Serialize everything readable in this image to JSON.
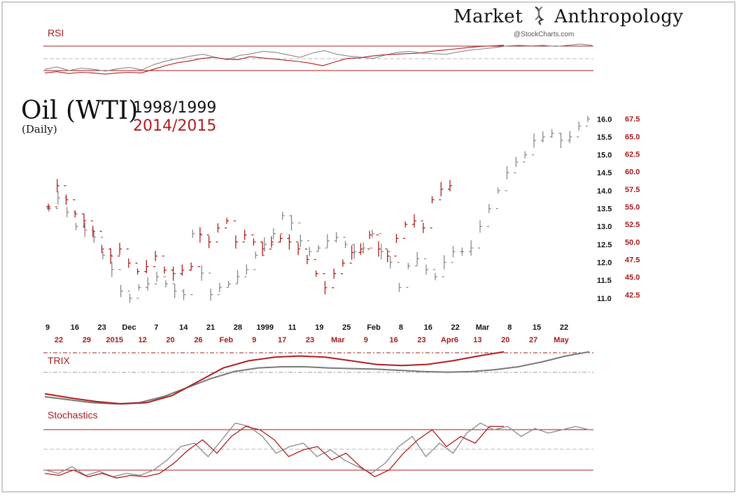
{
  "brand": {
    "name_part1": "Market",
    "name_part2": "Anthropology",
    "credit": "@StockCharts.com"
  },
  "title": {
    "main": "Oil (WTI)",
    "sub": "(Daily)"
  },
  "legend": {
    "series_a": "1998/1999",
    "series_b": "2014/2015",
    "color_a": "#888888",
    "color_b": "#b01c1c"
  },
  "panels": {
    "rsi": "RSI",
    "trix": "TRIX",
    "stochastics": "Stochastics"
  },
  "chart_data": [
    {
      "type": "candlestick",
      "title": "Oil (WTI) daily - 1998/1999 vs 2014/2015",
      "ylabel_left_series": "1998/1999",
      "y_axis_1998": {
        "ticks": [
          "11.0",
          "11.5",
          "12.0",
          "12.5",
          "13.0",
          "13.5",
          "14.0",
          "14.5",
          "15.0",
          "15.5",
          "16.0"
        ],
        "range": [
          10.9,
          16.2
        ]
      },
      "y_axis_2014": {
        "ticks": [
          "42.5",
          "45.0",
          "47.5",
          "50.0",
          "52.5",
          "55.0",
          "57.5",
          "60.0",
          "62.5",
          "65.0",
          "67.5"
        ],
        "range": [
          41.5,
          68.5
        ]
      },
      "x_labels_1998": [
        "9",
        "16",
        "23",
        "Dec",
        "7",
        "14",
        "21",
        "28",
        "1999",
        "11",
        "19",
        "25",
        "Feb",
        "8",
        "16",
        "22",
        "Mar",
        "8",
        "15",
        "22"
      ],
      "x_labels_2014": [
        "22",
        "29",
        "2015",
        "12",
        "20",
        "26",
        "Feb",
        "9",
        "17",
        "23",
        "Mar",
        "9",
        "16",
        "23",
        "Apr6",
        "13",
        "20",
        "27",
        "May"
      ],
      "series": [
        {
          "name": "1998/1999",
          "color": "#888888",
          "close": [
            13.5,
            13.8,
            13.4,
            13.0,
            12.9,
            12.7,
            12.2,
            11.8,
            11.2,
            11.0,
            11.3,
            11.4,
            11.6,
            11.4,
            11.2,
            11.1,
            12.8,
            11.7,
            11.1,
            11.3,
            11.4,
            11.6,
            11.8,
            12.2,
            12.5,
            12.8,
            13.3,
            13.1,
            12.6,
            12.3,
            12.4,
            12.6,
            12.7,
            12.5,
            12.3,
            12.4,
            12.8,
            12.3,
            12.0,
            11.3,
            11.9,
            12.1,
            11.8,
            11.6,
            12.0,
            12.3,
            12.3,
            12.4,
            13.0,
            13.5,
            14.0,
            14.5,
            14.8,
            15.0,
            15.4,
            15.5,
            15.6,
            15.4,
            15.5,
            15.8,
            16.0
          ]
        },
        {
          "name": "2014/2015",
          "color": "#b01c1c",
          "close": [
            55.0,
            58.0,
            56.0,
            54.0,
            53.0,
            51.5,
            49.0,
            48.0,
            49.0,
            47.0,
            45.8,
            46.5,
            48.0,
            46.0,
            45.5,
            46.0,
            46.5,
            51.0,
            50.0,
            52.0,
            53.0,
            50.0,
            51.0,
            50.0,
            49.0,
            50.0,
            50.5,
            50.0,
            49.0,
            47.5,
            45.5,
            43.5,
            45.5,
            47.0,
            48.5,
            49.0,
            51.0,
            49.0,
            48.0,
            50.5,
            52.5,
            53.0,
            52.0,
            56.0,
            57.5,
            58.0
          ]
        }
      ]
    },
    {
      "type": "line",
      "title": "RSI",
      "levels": [
        70,
        50,
        30
      ],
      "series": [
        {
          "name": "1998/1999",
          "color": "#888888",
          "values": [
            30,
            34,
            28,
            32,
            30,
            27,
            31,
            33,
            29,
            38,
            44,
            48,
            52,
            55,
            50,
            46,
            53,
            56,
            60,
            58,
            54,
            50,
            57,
            61,
            55,
            52,
            50,
            48,
            54,
            58,
            60,
            57,
            56,
            55,
            59,
            62,
            64,
            66,
            69,
            70,
            69,
            70,
            68,
            70,
            72,
            70
          ]
        },
        {
          "name": "2014/2015",
          "color": "#b01c1c",
          "values": [
            24,
            26,
            23,
            25,
            24,
            22,
            24,
            25,
            24,
            30,
            36,
            41,
            44,
            48,
            50,
            47,
            46,
            51,
            49,
            47,
            45,
            43,
            40,
            36,
            42,
            48,
            49,
            52,
            54,
            55,
            56,
            57,
            60,
            62,
            64,
            66,
            68,
            69,
            70
          ]
        }
      ]
    },
    {
      "type": "line",
      "title": "TRIX",
      "series": [
        {
          "name": "1998/1999",
          "color": "#777777",
          "values": [
            -0.6,
            -0.65,
            -0.7,
            -0.72,
            -0.7,
            -0.6,
            -0.45,
            -0.3,
            -0.18,
            -0.12,
            -0.1,
            -0.1,
            -0.12,
            -0.13,
            -0.14,
            -0.16,
            -0.18,
            -0.19,
            -0.18,
            -0.15,
            -0.1,
            -0.02,
            0.08,
            0.15
          ]
        },
        {
          "name": "2014/2015",
          "color": "#b01c1c",
          "values": [
            -0.55,
            -0.62,
            -0.68,
            -0.72,
            -0.7,
            -0.58,
            -0.35,
            -0.12,
            0.0,
            0.06,
            0.08,
            0.06,
            0.0,
            -0.06,
            -0.08,
            -0.06,
            0.0,
            0.08,
            0.15
          ]
        }
      ]
    },
    {
      "type": "line",
      "title": "Stochastics",
      "levels": [
        80,
        50,
        20
      ],
      "series": [
        {
          "name": "1998/1999",
          "color": "#888888",
          "values": [
            20,
            15,
            25,
            12,
            18,
            10,
            15,
            12,
            20,
            35,
            55,
            60,
            40,
            65,
            90,
            85,
            70,
            45,
            55,
            60,
            40,
            50,
            35,
            25,
            15,
            30,
            55,
            70,
            40,
            60,
            45,
            75,
            90,
            80,
            85,
            70,
            82,
            75,
            80,
            85,
            80
          ]
        },
        {
          "name": "2014/2015",
          "color": "#b01c1c",
          "values": [
            15,
            12,
            20,
            10,
            15,
            8,
            12,
            10,
            15,
            30,
            50,
            65,
            45,
            70,
            85,
            80,
            65,
            40,
            50,
            55,
            35,
            45,
            25,
            10,
            20,
            45,
            65,
            80,
            55,
            70,
            60,
            85,
            85
          ]
        }
      ]
    }
  ]
}
